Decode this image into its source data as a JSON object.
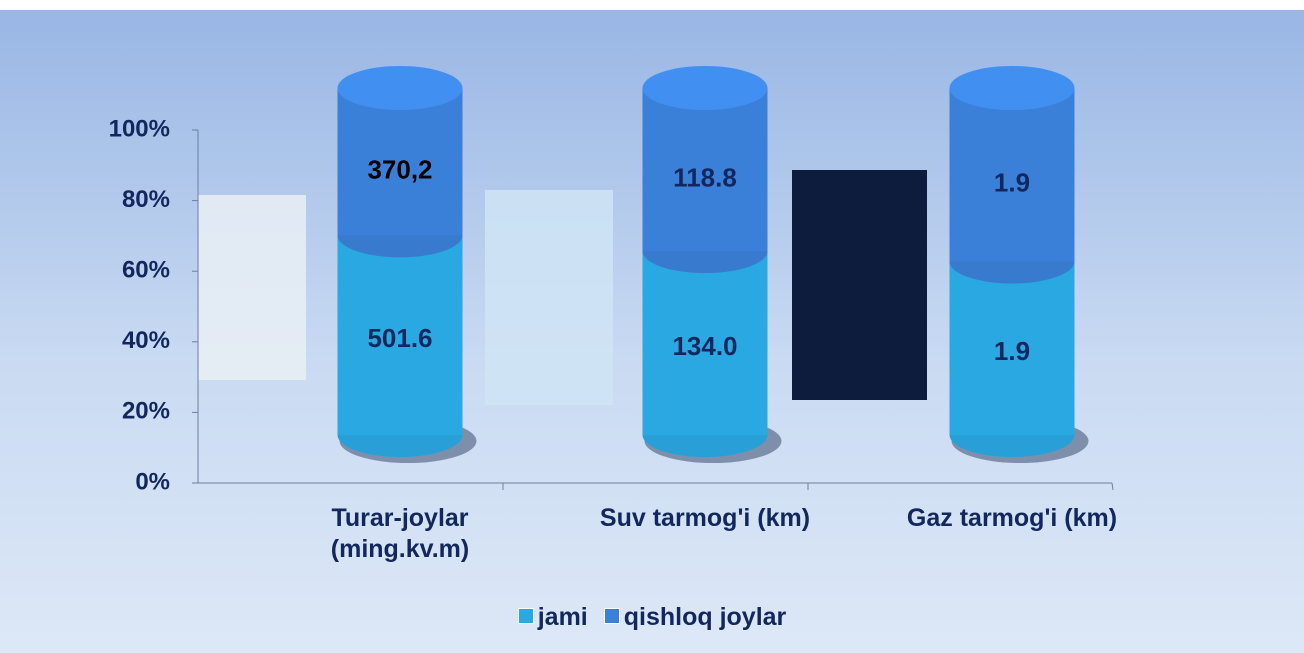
{
  "chart_data": {
    "type": "stacked_cylinder_100",
    "categories": [
      "Turar-joylar\n(ming.kv.m)",
      "Suv tarmog'i (km)",
      "Gaz tarmog'i (km)"
    ],
    "series": [
      {
        "name": "jami",
        "color": "#2aa8e2",
        "values": [
          501.6,
          134.0,
          1.9
        ],
        "value_labels": [
          "501.6",
          "134.0",
          "1.9"
        ]
      },
      {
        "name": "qishloq joylar",
        "color": "#3b80d8",
        "values": [
          370.2,
          118.8,
          1.9
        ],
        "value_labels": [
          "370,2",
          "118.8",
          "1.9"
        ]
      }
    ],
    "ylim": [
      0,
      100
    ],
    "yticks": [
      {
        "value": 0,
        "label": "0%"
      },
      {
        "value": 20,
        "label": "20%"
      },
      {
        "value": 40,
        "label": "40%"
      },
      {
        "value": 60,
        "label": "60%"
      },
      {
        "value": 80,
        "label": "80%"
      },
      {
        "value": 100,
        "label": "100%"
      }
    ],
    "legend": "bottom"
  }
}
